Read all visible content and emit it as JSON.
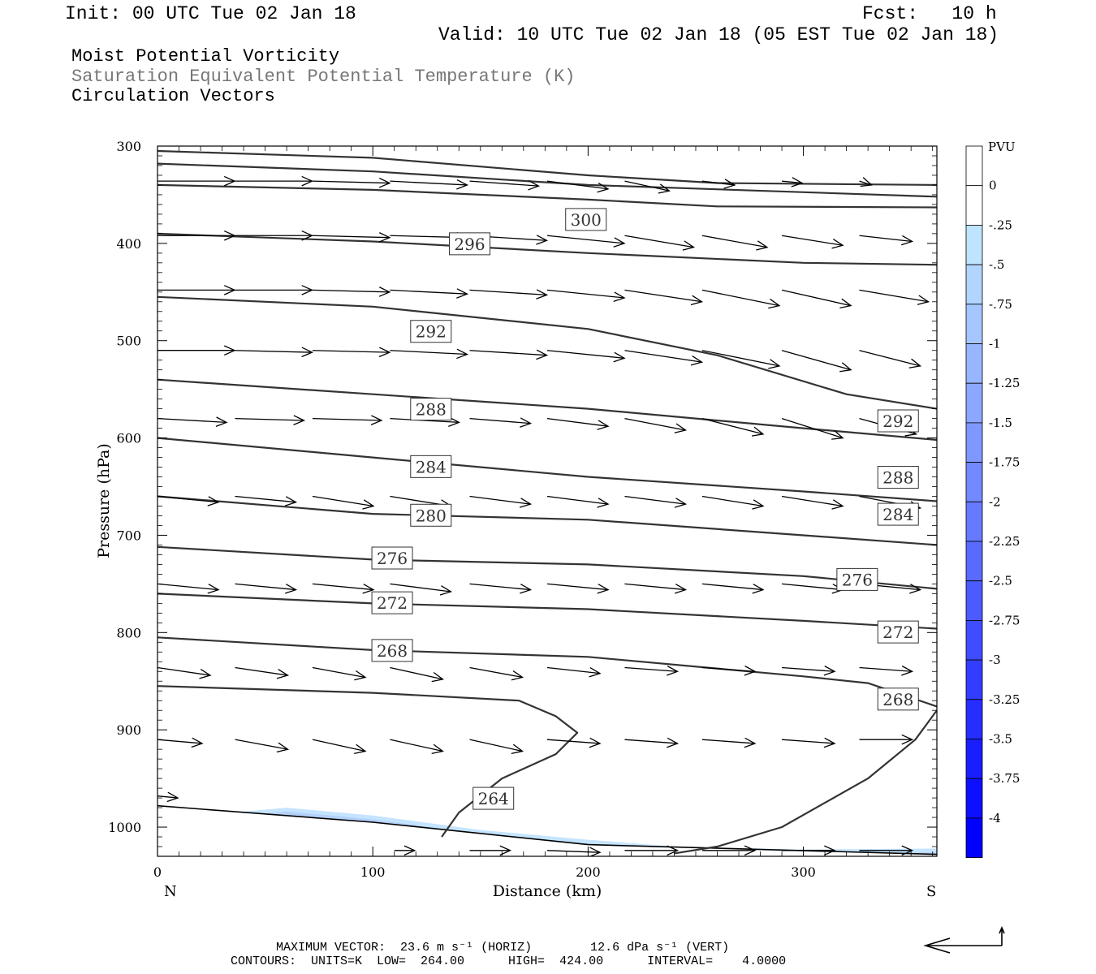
{
  "header": {
    "init": "Init: 00 UTC Tue 02 Jan 18",
    "fcst": "Fcst:   10 h",
    "valid": "Valid: 10 UTC Tue 02 Jan 18 (05 EST Tue 02 Jan 18)",
    "line1": "Moist Potential Vorticity",
    "line2": "Saturation Equivalent Potential Temperature (K)",
    "line3": "Circulation Vectors"
  },
  "footer": {
    "line1": "MAXIMUM VECTOR:  23.6 m s⁻¹ (HORIZ)        12.6 dPa s⁻¹ (VERT)",
    "line2": "CONTOURS:  UNITS=K  LOW=  264.00      HIGH=  424.00      INTERVAL=    4.0000"
  },
  "colors": {
    "contour": "#333333",
    "vector": "#000000",
    "pv_light": "#bfe3ff",
    "pv_dark": "#0000ff"
  },
  "chart_data": {
    "type": "cross-section",
    "xlabel": "Distance (km)",
    "ylabel": "Pressure (hPa)",
    "xlim": [
      0,
      362
    ],
    "ylim": [
      1030,
      300
    ],
    "x_ticks": [
      0,
      100,
      200,
      300
    ],
    "y_ticks": [
      300,
      400,
      500,
      600,
      700,
      800,
      900,
      1000
    ],
    "left_end_label": "N",
    "right_end_label": "S",
    "colorbar": {
      "title": "PVU",
      "labels": [
        "0",
        "-.25",
        "-.5",
        "-.75",
        "-1",
        "-1.25",
        "-1.5",
        "-1.75",
        "-2",
        "-2.25",
        "-2.5",
        "-2.75",
        "-3",
        "-3.25",
        "-3.5",
        "-3.75",
        "-4"
      ]
    },
    "terrain": [
      [
        0,
        978
      ],
      [
        100,
        995
      ],
      [
        200,
        1018
      ],
      [
        362,
        1028
      ]
    ],
    "pv_negative_region": [
      [
        35,
        985
      ],
      [
        60,
        980
      ],
      [
        100,
        988
      ],
      [
        150,
        1003
      ],
      [
        200,
        1013
      ],
      [
        240,
        1020
      ],
      [
        300,
        1023
      ],
      [
        362,
        1022
      ]
    ],
    "contours": [
      {
        "label": "300",
        "points": [
          [
            0,
            305
          ],
          [
            100,
            312
          ],
          [
            200,
            330
          ],
          [
            260,
            338
          ],
          [
            362,
            340
          ]
        ]
      },
      {
        "label": "",
        "points": [
          [
            0,
            318
          ],
          [
            100,
            326
          ],
          [
            200,
            340
          ],
          [
            362,
            352
          ]
        ]
      },
      {
        "label": "300",
        "points": [
          [
            0,
            340
          ],
          [
            100,
            345
          ],
          [
            200,
            355
          ],
          [
            260,
            362
          ],
          [
            362,
            363
          ]
        ]
      },
      {
        "label": "296",
        "points": [
          [
            0,
            390
          ],
          [
            100,
            398
          ],
          [
            200,
            410
          ],
          [
            300,
            420
          ],
          [
            362,
            422
          ]
        ]
      },
      {
        "label": "292",
        "points": [
          [
            0,
            455
          ],
          [
            100,
            465
          ],
          [
            200,
            488
          ],
          [
            260,
            515
          ],
          [
            320,
            555
          ],
          [
            362,
            570
          ]
        ]
      },
      {
        "label": "288",
        "points": [
          [
            0,
            540
          ],
          [
            100,
            555
          ],
          [
            200,
            570
          ],
          [
            300,
            590
          ],
          [
            362,
            602
          ]
        ]
      },
      {
        "label": "284",
        "points": [
          [
            0,
            600
          ],
          [
            100,
            620
          ],
          [
            200,
            640
          ],
          [
            300,
            655
          ],
          [
            362,
            665
          ]
        ]
      },
      {
        "label": "280",
        "points": [
          [
            0,
            660
          ],
          [
            100,
            678
          ],
          [
            200,
            684
          ],
          [
            300,
            700
          ],
          [
            362,
            710
          ]
        ]
      },
      {
        "label": "276",
        "points": [
          [
            0,
            712
          ],
          [
            100,
            725
          ],
          [
            200,
            730
          ],
          [
            300,
            742
          ],
          [
            362,
            755
          ]
        ]
      },
      {
        "label": "272",
        "points": [
          [
            0,
            760
          ],
          [
            100,
            770
          ],
          [
            200,
            776
          ],
          [
            300,
            788
          ],
          [
            362,
            796
          ]
        ]
      },
      {
        "label": "268",
        "points": [
          [
            0,
            805
          ],
          [
            100,
            818
          ],
          [
            200,
            825
          ],
          [
            300,
            845
          ],
          [
            330,
            852
          ],
          [
            362,
            876
          ]
        ]
      },
      {
        "label": "264",
        "points": [
          [
            0,
            855
          ],
          [
            100,
            862
          ],
          [
            168,
            870
          ],
          [
            185,
            886
          ],
          [
            195,
            903
          ],
          [
            185,
            925
          ],
          [
            160,
            950
          ],
          [
            140,
            985
          ],
          [
            132,
            1010
          ]
        ]
      },
      {
        "label": "",
        "points": [
          [
            240,
            1027
          ],
          [
            260,
            1020
          ],
          [
            290,
            1000
          ],
          [
            330,
            950
          ],
          [
            352,
            910
          ],
          [
            362,
            880
          ]
        ]
      }
    ],
    "contour_labels": [
      {
        "text": "300",
        "x": 199,
        "p": 375
      },
      {
        "text": "296",
        "x": 145,
        "p": 400
      },
      {
        "text": "292",
        "x": 127,
        "p": 490
      },
      {
        "text": "292",
        "x": 344,
        "p": 582
      },
      {
        "text": "288",
        "x": 127,
        "p": 570
      },
      {
        "text": "288",
        "x": 344,
        "p": 640
      },
      {
        "text": "284",
        "x": 127,
        "p": 629
      },
      {
        "text": "284",
        "x": 344,
        "p": 678
      },
      {
        "text": "280",
        "x": 127,
        "p": 679
      },
      {
        "text": "276",
        "x": 109,
        "p": 723
      },
      {
        "text": "276",
        "x": 325,
        "p": 745
      },
      {
        "text": "272",
        "x": 109,
        "p": 769
      },
      {
        "text": "272",
        "x": 344,
        "p": 799
      },
      {
        "text": "268",
        "x": 109,
        "p": 818
      },
      {
        "text": "268",
        "x": 344,
        "p": 868
      },
      {
        "text": "264",
        "x": 156,
        "p": 970
      }
    ],
    "vector_rows": [
      {
        "p": 336,
        "x0": [
          0,
          36,
          72,
          108,
          145,
          181,
          217,
          253,
          290,
          326
        ],
        "u": [
          0.19,
          0.19,
          0.19,
          0.19,
          0.17,
          0.15,
          0.11,
          0.08,
          0.05,
          0.03
        ],
        "dp": [
          0,
          0,
          2,
          4,
          5,
          8,
          10,
          4,
          2,
          4
        ]
      },
      {
        "p": 392,
        "x0": [
          0,
          36,
          72,
          108,
          145,
          181,
          217,
          253,
          290,
          326
        ],
        "u": [
          0.19,
          0.19,
          0.19,
          0.19,
          0.19,
          0.19,
          0.17,
          0.16,
          0.15,
          0.13
        ],
        "dp": [
          0,
          0,
          2,
          2,
          5,
          8,
          12,
          12,
          10,
          6
        ]
      },
      {
        "p": 448,
        "x0": [
          0,
          36,
          72,
          108,
          145,
          181,
          217,
          253,
          290,
          326
        ],
        "u": [
          0.19,
          0.19,
          0.19,
          0.19,
          0.19,
          0.19,
          0.19,
          0.19,
          0.17,
          0.17
        ],
        "dp": [
          0,
          0,
          2,
          4,
          5,
          8,
          12,
          16,
          16,
          12
        ]
      },
      {
        "p": 510,
        "x0": [
          0,
          36,
          72,
          108,
          145,
          181,
          217,
          253,
          290,
          326
        ],
        "u": [
          0.19,
          0.19,
          0.19,
          0.19,
          0.19,
          0.19,
          0.19,
          0.19,
          0.17,
          0.15
        ],
        "dp": [
          0,
          2,
          2,
          4,
          5,
          8,
          12,
          16,
          20,
          16
        ]
      },
      {
        "p": 580,
        "x0": [
          0,
          36,
          72,
          108,
          145,
          181,
          217,
          253,
          290,
          326
        ],
        "u": [
          0.17,
          0.17,
          0.17,
          0.17,
          0.15,
          0.15,
          0.15,
          0.15,
          0.15,
          0.14
        ],
        "dp": [
          4,
          2,
          2,
          4,
          5,
          8,
          12,
          16,
          20,
          16
        ]
      },
      {
        "p": 660,
        "x0": [
          0,
          36,
          72,
          108,
          145,
          181,
          217,
          253,
          290,
          326
        ],
        "u": [
          0.15,
          0.15,
          0.15,
          0.15,
          0.15,
          0.15,
          0.15,
          0.15,
          0.15,
          0.15
        ],
        "dp": [
          6,
          6,
          10,
          10,
          8,
          8,
          8,
          10,
          10,
          12
        ]
      },
      {
        "p": 750,
        "x0": [
          0,
          36,
          72,
          108,
          145,
          181,
          217,
          253,
          290,
          326
        ],
        "u": [
          0.15,
          0.15,
          0.15,
          0.15,
          0.15,
          0.15,
          0.15,
          0.15,
          0.15,
          0.15
        ],
        "dp": [
          6,
          6,
          6,
          8,
          6,
          6,
          6,
          6,
          6,
          6
        ]
      },
      {
        "p": 836,
        "x0": [
          0,
          36,
          72,
          108,
          145,
          181,
          217,
          253,
          290,
          326
        ],
        "u": [
          0.13,
          0.13,
          0.13,
          0.13,
          0.13,
          0.13,
          0.13,
          0.13,
          0.13,
          0.13
        ],
        "dp": [
          8,
          8,
          10,
          12,
          10,
          6,
          4,
          4,
          4,
          4
        ]
      },
      {
        "p": 910,
        "x0": [
          0,
          36,
          72,
          108,
          145,
          181,
          217,
          253,
          290,
          326
        ],
        "u": [
          0.11,
          0.13,
          0.13,
          0.13,
          0.13,
          0.13,
          0.13,
          0.13,
          0.13,
          0.13
        ],
        "dp": [
          4,
          10,
          12,
          12,
          12,
          4,
          4,
          4,
          4,
          0
        ]
      },
      {
        "p": 968,
        "x0": [
          0
        ],
        "u": [
          0.05
        ],
        "dp": [
          2
        ]
      },
      {
        "p": 1024,
        "x0": [
          110,
          145,
          181,
          217,
          253,
          290,
          326
        ],
        "u": [
          0.05,
          0.1,
          0.13,
          0.13,
          0.13,
          0.13,
          0.13
        ],
        "dp": [
          0,
          0,
          2,
          0,
          0,
          0,
          0
        ]
      }
    ]
  }
}
